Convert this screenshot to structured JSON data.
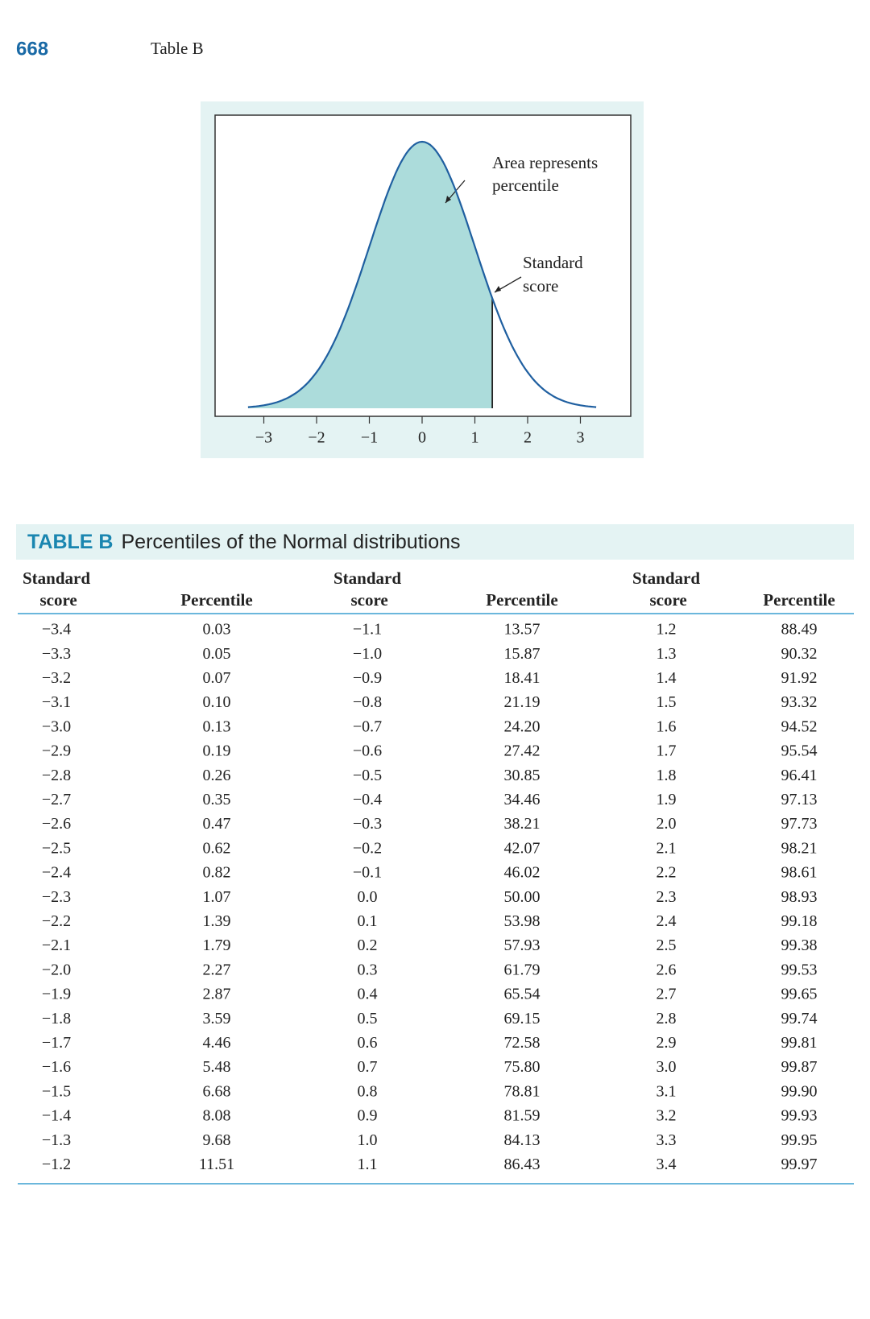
{
  "header": {
    "page_number": "668",
    "running_title": "Table B"
  },
  "figure": {
    "annotations": {
      "area_line1": "Area represents",
      "area_line2": "percentile",
      "score_line1": "Standard",
      "score_line2": "score"
    },
    "axis_labels": [
      "−3",
      "−2",
      "−1",
      "0",
      "1",
      "2",
      "3"
    ]
  },
  "table": {
    "label": "TABLE B",
    "title": "Percentiles of the Normal distributions",
    "headers": [
      "Standard score",
      "Percentile",
      "Standard score",
      "Percentile",
      "Standard score",
      "Percentile"
    ],
    "rows": [
      [
        "−3.4",
        "0.03",
        "−1.1",
        "13.57",
        "1.2",
        "88.49"
      ],
      [
        "−3.3",
        "0.05",
        "−1.0",
        "15.87",
        "1.3",
        "90.32"
      ],
      [
        "−3.2",
        "0.07",
        "−0.9",
        "18.41",
        "1.4",
        "91.92"
      ],
      [
        "−3.1",
        "0.10",
        "−0.8",
        "21.19",
        "1.5",
        "93.32"
      ],
      [
        "−3.0",
        "0.13",
        "−0.7",
        "24.20",
        "1.6",
        "94.52"
      ],
      [
        "−2.9",
        "0.19",
        "−0.6",
        "27.42",
        "1.7",
        "95.54"
      ],
      [
        "−2.8",
        "0.26",
        "−0.5",
        "30.85",
        "1.8",
        "96.41"
      ],
      [
        "−2.7",
        "0.35",
        "−0.4",
        "34.46",
        "1.9",
        "97.13"
      ],
      [
        "−2.6",
        "0.47",
        "−0.3",
        "38.21",
        "2.0",
        "97.73"
      ],
      [
        "−2.5",
        "0.62",
        "−0.2",
        "42.07",
        "2.1",
        "98.21"
      ],
      [
        "−2.4",
        "0.82",
        "−0.1",
        "46.02",
        "2.2",
        "98.61"
      ],
      [
        "−2.3",
        "1.07",
        "0.0",
        "50.00",
        "2.3",
        "98.93"
      ],
      [
        "−2.2",
        "1.39",
        "0.1",
        "53.98",
        "2.4",
        "99.18"
      ],
      [
        "−2.1",
        "1.79",
        "0.2",
        "57.93",
        "2.5",
        "99.38"
      ],
      [
        "−2.0",
        "2.27",
        "0.3",
        "61.79",
        "2.6",
        "99.53"
      ],
      [
        "−1.9",
        "2.87",
        "0.4",
        "65.54",
        "2.7",
        "99.65"
      ],
      [
        "−1.8",
        "3.59",
        "0.5",
        "69.15",
        "2.8",
        "99.74"
      ],
      [
        "−1.7",
        "4.46",
        "0.6",
        "72.58",
        "2.9",
        "99.81"
      ],
      [
        "−1.6",
        "5.48",
        "0.7",
        "75.80",
        "3.0",
        "99.87"
      ],
      [
        "−1.5",
        "6.68",
        "0.8",
        "78.81",
        "3.1",
        "99.90"
      ],
      [
        "−1.4",
        "8.08",
        "0.9",
        "81.59",
        "3.2",
        "99.93"
      ],
      [
        "−1.3",
        "9.68",
        "1.0",
        "84.13",
        "3.3",
        "99.95"
      ],
      [
        "−1.2",
        "11.51",
        "1.1",
        "86.43",
        "3.4",
        "99.97"
      ]
    ]
  }
}
